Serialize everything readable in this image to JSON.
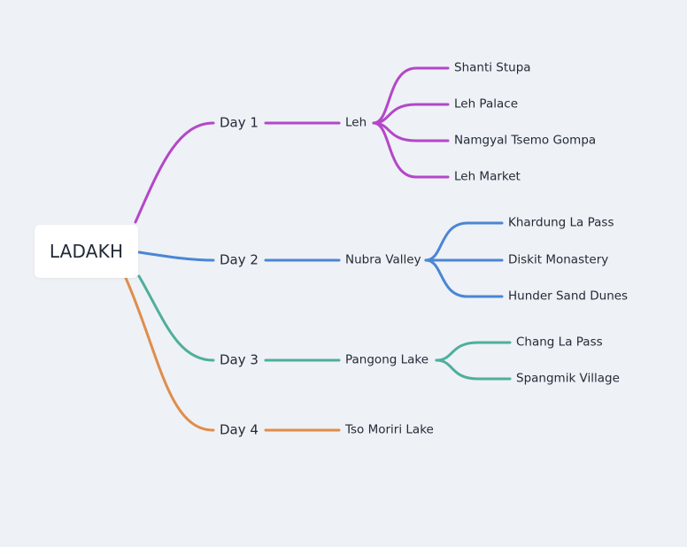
{
  "root": {
    "label": "LADAKH"
  },
  "days": [
    {
      "label": "Day 1",
      "color": "#b347c8",
      "destination": "Leh",
      "places": [
        "Shanti Stupa",
        "Leh Palace",
        "Namgyal Tsemo Gompa",
        "Leh Market"
      ]
    },
    {
      "label": "Day 2",
      "color": "#4a86d4",
      "destination": "Nubra Valley",
      "places": [
        "Khardung La Pass",
        "Diskit Monastery",
        "Hunder Sand Dunes"
      ]
    },
    {
      "label": "Day 3",
      "color": "#4daf9c",
      "destination": "Pangong Lake",
      "places": [
        "Chang La Pass",
        "Spangmik Village"
      ]
    },
    {
      "label": "Day 4",
      "color": "#df8d4b",
      "destination": "Tso Moriri Lake",
      "places": []
    }
  ]
}
